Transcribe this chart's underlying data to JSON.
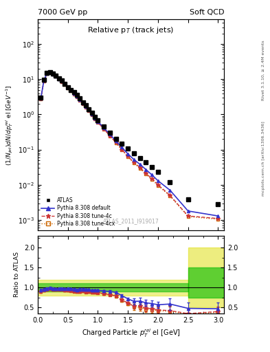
{
  "title_top_left": "7000 GeV pp",
  "title_top_right": "Soft QCD",
  "main_title": "Relative p$_{T}$ (track jets)",
  "right_label_top": "Rivet 3.1.10, ≥ 2.4M events",
  "right_label_bot": "mcplots.cern.ch [arXiv:1306.3436]",
  "watermark": "ATLAS_2011_I919017",
  "xlabel": "Charged Particle $p^{rel}_{T}$ el [GeV]",
  "ylabel": "(1/Njet)dN/dp$^{rel}_{T}$ el [GeV$^{-1}$]",
  "ylabel_ratio": "Ratio to ATLAS",
  "xlim": [
    0.0,
    3.1
  ],
  "ylim_main": [
    0.0005,
    500
  ],
  "ylim_ratio": [
    0.35,
    2.3
  ],
  "ratio_yticks": [
    0.5,
    1.0,
    1.5,
    2.0
  ],
  "atlas_x": [
    0.05,
    0.1,
    0.15,
    0.2,
    0.25,
    0.3,
    0.35,
    0.4,
    0.45,
    0.5,
    0.55,
    0.6,
    0.65,
    0.7,
    0.75,
    0.8,
    0.85,
    0.9,
    0.95,
    1.0,
    1.1,
    1.2,
    1.3,
    1.4,
    1.5,
    1.6,
    1.7,
    1.8,
    1.9,
    2.0,
    2.2,
    2.5,
    3.0
  ],
  "atlas_y": [
    3.0,
    9.5,
    15.0,
    16.0,
    14.5,
    12.5,
    10.5,
    9.0,
    7.5,
    6.0,
    5.0,
    4.2,
    3.5,
    2.8,
    2.2,
    1.8,
    1.4,
    1.1,
    0.85,
    0.68,
    0.45,
    0.3,
    0.2,
    0.145,
    0.105,
    0.08,
    0.058,
    0.044,
    0.032,
    0.023,
    0.012,
    0.0038,
    0.0028
  ],
  "pythia_default_x": [
    0.05,
    0.1,
    0.15,
    0.2,
    0.25,
    0.3,
    0.35,
    0.4,
    0.45,
    0.5,
    0.55,
    0.6,
    0.65,
    0.7,
    0.75,
    0.8,
    0.85,
    0.9,
    0.95,
    1.0,
    1.1,
    1.2,
    1.3,
    1.4,
    1.5,
    1.6,
    1.7,
    1.8,
    1.9,
    2.0,
    2.2,
    2.5,
    3.0
  ],
  "pythia_default_y": [
    2.8,
    9.0,
    14.5,
    15.8,
    14.0,
    12.0,
    10.2,
    8.7,
    7.2,
    5.8,
    4.8,
    4.0,
    3.3,
    2.65,
    2.1,
    1.7,
    1.32,
    1.02,
    0.79,
    0.63,
    0.41,
    0.27,
    0.175,
    0.115,
    0.075,
    0.052,
    0.038,
    0.027,
    0.019,
    0.013,
    0.007,
    0.0018,
    0.0013
  ],
  "pythia_4c_x": [
    0.05,
    0.1,
    0.15,
    0.2,
    0.25,
    0.3,
    0.35,
    0.4,
    0.45,
    0.5,
    0.55,
    0.6,
    0.65,
    0.7,
    0.75,
    0.8,
    0.85,
    0.9,
    0.95,
    1.0,
    1.1,
    1.2,
    1.3,
    1.4,
    1.5,
    1.6,
    1.7,
    1.8,
    1.9,
    2.0,
    2.2,
    2.5,
    3.0
  ],
  "pythia_4c_y": [
    2.7,
    8.8,
    14.2,
    15.5,
    13.8,
    11.8,
    10.0,
    8.5,
    7.0,
    5.6,
    4.6,
    3.8,
    3.15,
    2.5,
    2.0,
    1.6,
    1.25,
    0.97,
    0.75,
    0.59,
    0.38,
    0.245,
    0.158,
    0.1,
    0.064,
    0.043,
    0.031,
    0.021,
    0.015,
    0.01,
    0.005,
    0.0013,
    0.0011
  ],
  "pythia_4cx_x": [
    0.05,
    0.1,
    0.15,
    0.2,
    0.25,
    0.3,
    0.35,
    0.4,
    0.45,
    0.5,
    0.55,
    0.6,
    0.65,
    0.7,
    0.75,
    0.8,
    0.85,
    0.9,
    0.95,
    1.0,
    1.1,
    1.2,
    1.3,
    1.4,
    1.5,
    1.6,
    1.7,
    1.8,
    1.9,
    2.0,
    2.2,
    2.5,
    3.0
  ],
  "pythia_4cx_y": [
    2.7,
    8.8,
    14.2,
    15.5,
    13.8,
    11.8,
    10.0,
    8.5,
    7.0,
    5.6,
    4.6,
    3.8,
    3.15,
    2.5,
    2.0,
    1.6,
    1.25,
    0.97,
    0.75,
    0.59,
    0.38,
    0.245,
    0.155,
    0.098,
    0.062,
    0.041,
    0.029,
    0.02,
    0.014,
    0.0095,
    0.0048,
    0.00125,
    0.00105
  ],
  "ratio_default_y": [
    0.93,
    0.95,
    0.97,
    0.99,
    0.97,
    0.96,
    0.97,
    0.97,
    0.96,
    0.97,
    0.96,
    0.95,
    0.94,
    0.95,
    0.955,
    0.944,
    0.943,
    0.927,
    0.929,
    0.926,
    0.911,
    0.9,
    0.875,
    0.793,
    0.714,
    0.65,
    0.655,
    0.614,
    0.594,
    0.565,
    0.583,
    0.474,
    0.464
  ],
  "ratio_4c_y": [
    0.9,
    0.926,
    0.947,
    0.969,
    0.952,
    0.944,
    0.952,
    0.944,
    0.933,
    0.933,
    0.92,
    0.905,
    0.9,
    0.893,
    0.909,
    0.889,
    0.893,
    0.882,
    0.882,
    0.868,
    0.844,
    0.817,
    0.79,
    0.69,
    0.61,
    0.538,
    0.534,
    0.477,
    0.469,
    0.435,
    0.417,
    0.342,
    0.393
  ],
  "ratio_4cx_y": [
    0.9,
    0.926,
    0.947,
    0.969,
    0.952,
    0.944,
    0.952,
    0.944,
    0.933,
    0.933,
    0.92,
    0.905,
    0.9,
    0.893,
    0.909,
    0.889,
    0.893,
    0.882,
    0.882,
    0.868,
    0.844,
    0.817,
    0.775,
    0.676,
    0.59,
    0.513,
    0.5,
    0.455,
    0.438,
    0.413,
    0.4,
    0.329,
    0.375
  ],
  "color_atlas": "#000000",
  "color_default": "#3333cc",
  "color_4c": "#cc3333",
  "color_4cx": "#cc6600",
  "color_green": "#00bb00",
  "color_yellow": "#dddd00",
  "legend_labels": [
    "ATLAS",
    "Pythia 8.308 default",
    "Pythia 8.308 tune-4c",
    "Pythia 8.308 tune-4cx"
  ]
}
